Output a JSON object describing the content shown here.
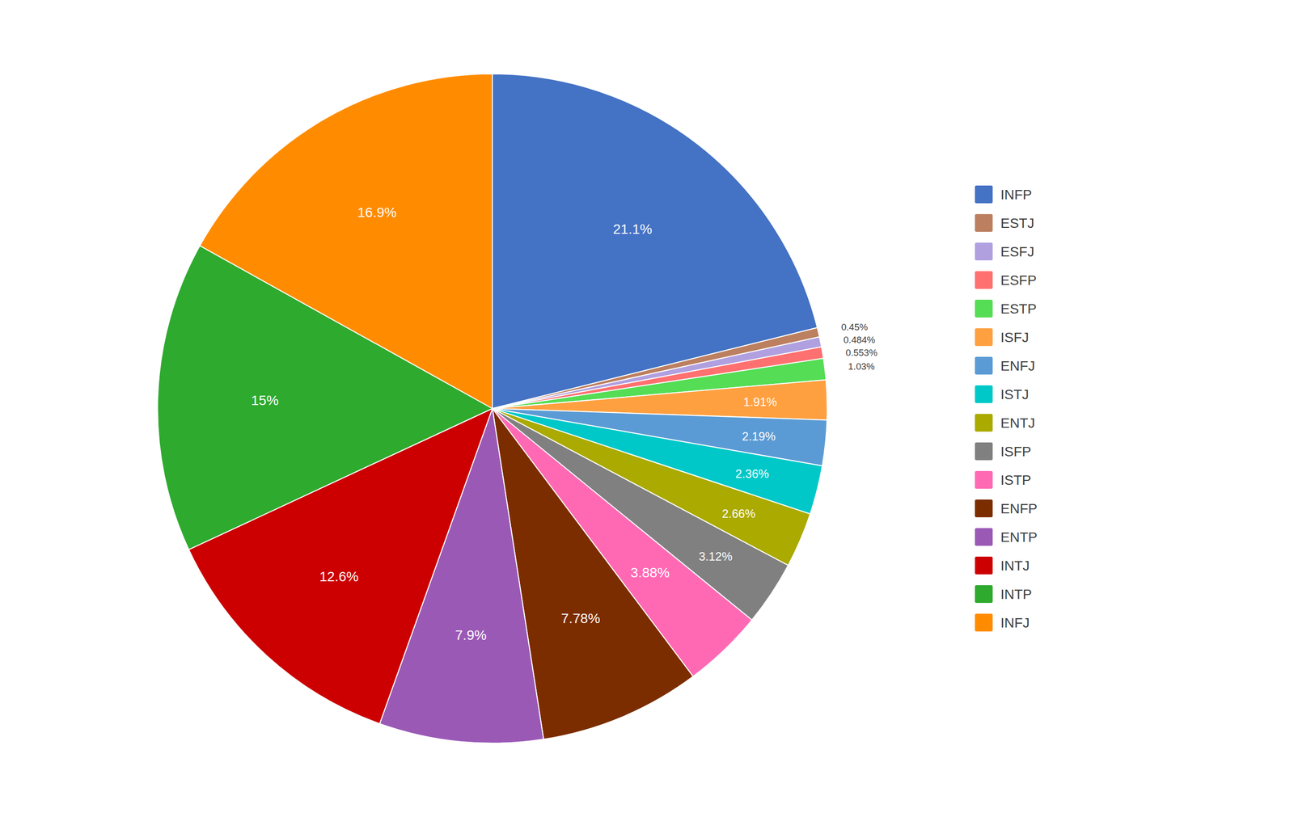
{
  "chart_data": {
    "type": "pie",
    "categories": [
      "INFP",
      "ESTJ",
      "ESFJ",
      "ESFP",
      "ESTP",
      "ISFJ",
      "ENFJ",
      "ISTJ",
      "ENTJ",
      "ISFP",
      "ISTP",
      "ENFP",
      "ENTP",
      "INTJ",
      "INTP",
      "INFJ"
    ],
    "values": [
      21.1,
      0.45,
      0.484,
      0.553,
      1.03,
      1.91,
      2.19,
      2.36,
      2.66,
      3.12,
      3.88,
      7.78,
      7.9,
      12.6,
      15.0,
      16.9
    ],
    "value_labels": [
      "21.1%",
      "0.45%",
      "0.484%",
      "0.553%",
      "1.03%",
      "1.91%",
      "2.19%",
      "2.36%",
      "2.66%",
      "3.12%",
      "3.88%",
      "7.78%",
      "7.9%",
      "12.6%",
      "15%",
      "16.9%"
    ],
    "colors": [
      "#4472C4",
      "#BC8060",
      "#B0A0E0",
      "#FF7070",
      "#55DD55",
      "#FFA040",
      "#5B9BD5",
      "#00C8C8",
      "#AAAA00",
      "#808080",
      "#FF69B4",
      "#7B2D00",
      "#9B59B6",
      "#CC0000",
      "#2EAA2E",
      "#FF8C00"
    ],
    "data_labels": true,
    "legend": "right"
  }
}
